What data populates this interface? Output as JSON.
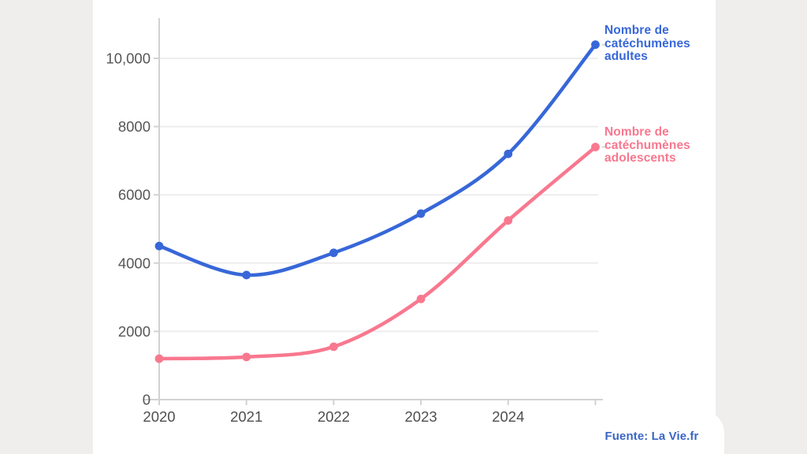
{
  "page": {
    "background_color": "#EFEEEC",
    "card_color": "#FFFFFF"
  },
  "source": {
    "label": "Fuente: La Vie.fr",
    "color": "#3A66C4"
  },
  "chart_data": {
    "type": "line",
    "title": "",
    "xlabel": "",
    "ylabel": "",
    "x": [
      2020,
      2021,
      2022,
      2023,
      2024,
      2025
    ],
    "series": [
      {
        "name": "Nombre de catéchumènes adultes",
        "label_lines": "Nombre de\ncatéchumènes\nadultes",
        "color": "#3767D8",
        "values": [
          4500,
          3650,
          4300,
          5450,
          7200,
          10400
        ]
      },
      {
        "name": "Nombre de catéchumènes adolescents",
        "label_lines": "Nombre de\ncatéchumènes\nadolescents",
        "color": "#F8788F",
        "values": [
          1200,
          1250,
          1550,
          2950,
          5250,
          7400
        ]
      }
    ],
    "ylim": [
      0,
      10800
    ],
    "yticks": [
      0,
      2000,
      4000,
      6000,
      8000,
      10000
    ],
    "ytick_labels": [
      "0",
      "2000",
      "4000",
      "6000",
      "8000",
      "10,000"
    ],
    "grid": "horizontal-only",
    "legend_position": "right-of-line-end",
    "grid_color": "#EDEDED",
    "axis_color": "#D2D2D2",
    "tick_label_color": "#565656",
    "xtick_label_color": "#4E4E4E",
    "legend_tick_color": "#D9D9D9"
  }
}
